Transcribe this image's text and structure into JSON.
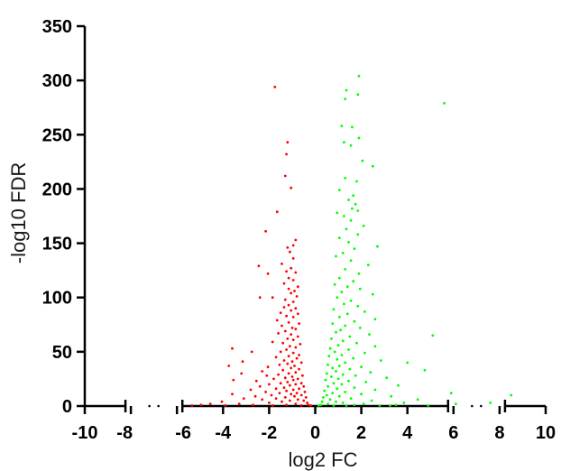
{
  "chart_data": {
    "type": "scatter",
    "title": "",
    "xlabel": "log2 FC",
    "ylabel": "-log10 FDR",
    "xlim": [
      -10,
      10
    ],
    "ylim": [
      0,
      350
    ],
    "x_axis_breaks": [
      [
        -8,
        -6
      ],
      [
        6,
        8
      ]
    ],
    "xticks": [
      "-10",
      "-8",
      "-6",
      "-4",
      "-2",
      "0",
      "2",
      "4",
      "6",
      "8",
      "10"
    ],
    "yticks": [
      "0",
      "50",
      "100",
      "150",
      "200",
      "250",
      "300",
      "350"
    ],
    "grid": false,
    "legend": "none",
    "series": [
      {
        "color": "#ff0000",
        "points": [
          [
            -1.75,
            294
          ],
          [
            -1.2,
            243
          ],
          [
            -1.25,
            232
          ],
          [
            -1.3,
            212
          ],
          [
            -1.05,
            201
          ],
          [
            -1.65,
            179
          ],
          [
            -2.15,
            161
          ],
          [
            -0.85,
            153
          ],
          [
            -0.95,
            148
          ],
          [
            -1.2,
            146
          ],
          [
            -1.1,
            142
          ],
          [
            -0.95,
            136
          ],
          [
            -1.45,
            131
          ],
          [
            -2.45,
            129
          ],
          [
            -1.05,
            127
          ],
          [
            -1.25,
            124
          ],
          [
            -0.85,
            123
          ],
          [
            -2.05,
            122
          ],
          [
            -1.15,
            118
          ],
          [
            -0.95,
            116
          ],
          [
            -1.35,
            113
          ],
          [
            -0.75,
            110
          ],
          [
            -1.15,
            108
          ],
          [
            -0.9,
            106
          ],
          [
            -1.05,
            104
          ],
          [
            -2.4,
            100
          ],
          [
            -1.85,
            100
          ],
          [
            -0.8,
            101
          ],
          [
            -1.3,
            98
          ],
          [
            -0.95,
            96
          ],
          [
            -1.15,
            93
          ],
          [
            -1.35,
            91
          ],
          [
            -0.85,
            90
          ],
          [
            -1.05,
            88
          ],
          [
            -1.5,
            86
          ],
          [
            -0.75,
            85
          ],
          [
            -1.25,
            83
          ],
          [
            -0.95,
            82
          ],
          [
            -1.65,
            79
          ],
          [
            -1.15,
            77
          ],
          [
            -0.7,
            76
          ],
          [
            -1.45,
            74
          ],
          [
            -1.0,
            72
          ],
          [
            -0.85,
            71
          ],
          [
            -1.3,
            69
          ],
          [
            -1.6,
            67
          ],
          [
            -1.05,
            66
          ],
          [
            -0.75,
            64
          ],
          [
            -1.2,
            62
          ],
          [
            -0.95,
            61
          ],
          [
            -1.85,
            59
          ],
          [
            -1.4,
            58
          ],
          [
            -0.65,
            57
          ],
          [
            -1.1,
            55
          ],
          [
            -0.85,
            54
          ],
          [
            -3.6,
            53
          ],
          [
            -1.25,
            52
          ],
          [
            -1.5,
            50
          ],
          [
            -0.95,
            49
          ],
          [
            -2.75,
            50
          ],
          [
            -0.7,
            47
          ],
          [
            -1.15,
            46
          ],
          [
            -1.7,
            45
          ],
          [
            -0.8,
            44
          ],
          [
            -1.35,
            42
          ],
          [
            -1.0,
            41
          ],
          [
            -3.15,
            41
          ],
          [
            -0.6,
            40
          ],
          [
            -1.2,
            39
          ],
          [
            -1.55,
            38
          ],
          [
            -3.75,
            37
          ],
          [
            -0.9,
            37
          ],
          [
            -2.05,
            36
          ],
          [
            -1.05,
            35
          ],
          [
            -0.7,
            34
          ],
          [
            -1.4,
            33
          ],
          [
            -2.3,
            32
          ],
          [
            -0.85,
            31
          ],
          [
            -1.15,
            30
          ],
          [
            -3.2,
            30
          ],
          [
            -1.6,
            29
          ],
          [
            -0.55,
            28
          ],
          [
            -2.1,
            28
          ],
          [
            -1.0,
            27
          ],
          [
            -1.3,
            26
          ],
          [
            -0.75,
            25
          ],
          [
            -1.8,
            25
          ],
          [
            -3.55,
            24
          ],
          [
            -0.95,
            24
          ],
          [
            -2.55,
            23
          ],
          [
            -1.2,
            22
          ],
          [
            -0.6,
            21
          ],
          [
            -1.5,
            21
          ],
          [
            -2.0,
            20
          ],
          [
            -0.85,
            20
          ],
          [
            -1.1,
            19
          ],
          [
            -2.4,
            18
          ],
          [
            -0.5,
            18
          ],
          [
            -1.35,
            17
          ],
          [
            -0.7,
            16
          ],
          [
            -1.7,
            16
          ],
          [
            -2.8,
            15
          ],
          [
            -0.95,
            15
          ],
          [
            -1.25,
            14
          ],
          [
            -0.45,
            13
          ],
          [
            -2.15,
            13
          ],
          [
            -0.8,
            12
          ],
          [
            -1.55,
            12
          ],
          [
            -3.6,
            11
          ],
          [
            -1.05,
            11
          ],
          [
            -0.6,
            10
          ],
          [
            -1.9,
            10
          ],
          [
            -2.6,
            9
          ],
          [
            -0.9,
            9
          ],
          [
            -1.3,
            8
          ],
          [
            -0.4,
            8
          ],
          [
            -3.1,
            7
          ],
          [
            -1.7,
            7
          ],
          [
            -0.75,
            6
          ],
          [
            -2.3,
            6
          ],
          [
            -1.1,
            5
          ],
          [
            -0.5,
            5
          ],
          [
            -4.05,
            4
          ],
          [
            -1.45,
            4
          ],
          [
            -0.35,
            3
          ],
          [
            -4.55,
            2
          ],
          [
            -2.0,
            3
          ],
          [
            -0.85,
            2
          ],
          [
            -4.95,
            1
          ],
          [
            -3.3,
            2
          ],
          [
            -1.25,
            1
          ],
          [
            -0.3,
            1
          ],
          [
            -5.35,
            0.5
          ],
          [
            -2.7,
            1
          ],
          [
            -0.6,
            0.5
          ],
          [
            -1.85,
            0.5
          ],
          [
            -3.9,
            0.5
          ],
          [
            -0.2,
            0.5
          ]
        ]
      },
      {
        "color": "#00ff00",
        "points": [
          [
            1.9,
            304
          ],
          [
            1.35,
            291
          ],
          [
            1.85,
            287
          ],
          [
            1.3,
            283
          ],
          [
            5.6,
            279
          ],
          [
            1.15,
            258
          ],
          [
            1.6,
            257
          ],
          [
            1.9,
            247
          ],
          [
            1.25,
            243
          ],
          [
            1.55,
            240
          ],
          [
            2.05,
            226
          ],
          [
            2.5,
            221
          ],
          [
            1.3,
            210
          ],
          [
            1.8,
            207
          ],
          [
            1.05,
            199
          ],
          [
            1.65,
            194
          ],
          [
            1.45,
            190
          ],
          [
            1.75,
            186
          ],
          [
            1.6,
            182
          ],
          [
            1.85,
            180
          ],
          [
            0.95,
            178
          ],
          [
            1.25,
            175
          ],
          [
            1.55,
            171
          ],
          [
            2.1,
            166
          ],
          [
            1.35,
            163
          ],
          [
            1.85,
            158
          ],
          [
            1.05,
            155
          ],
          [
            1.45,
            151
          ],
          [
            2.7,
            147
          ],
          [
            1.7,
            145
          ],
          [
            1.2,
            141
          ],
          [
            0.9,
            138
          ],
          [
            1.55,
            134
          ],
          [
            2.3,
            130
          ],
          [
            1.3,
            126
          ],
          [
            1.9,
            122
          ],
          [
            1.05,
            118
          ],
          [
            1.65,
            115
          ],
          [
            0.85,
            112
          ],
          [
            1.4,
            110
          ],
          [
            1.95,
            108
          ],
          [
            1.15,
            105
          ],
          [
            2.5,
            103
          ],
          [
            0.95,
            100
          ],
          [
            1.55,
            97
          ],
          [
            1.25,
            94
          ],
          [
            1.85,
            92
          ],
          [
            0.8,
            89
          ],
          [
            2.15,
            87
          ],
          [
            1.4,
            85
          ],
          [
            1.05,
            82
          ],
          [
            2.6,
            80
          ],
          [
            1.7,
            78
          ],
          [
            0.75,
            76
          ],
          [
            1.3,
            74
          ],
          [
            1.95,
            72
          ],
          [
            1.1,
            70
          ],
          [
            0.9,
            68
          ],
          [
            2.35,
            66
          ],
          [
            5.1,
            65
          ],
          [
            1.5,
            64
          ],
          [
            0.7,
            62
          ],
          [
            1.2,
            60
          ],
          [
            1.8,
            58
          ],
          [
            1.0,
            56
          ],
          [
            2.6,
            55
          ],
          [
            0.65,
            53
          ],
          [
            1.45,
            52
          ],
          [
            0.85,
            50
          ],
          [
            2.15,
            49
          ],
          [
            1.15,
            47
          ],
          [
            0.6,
            46
          ],
          [
            1.65,
            44
          ],
          [
            0.95,
            43
          ],
          [
            2.85,
            42
          ],
          [
            4.0,
            40
          ],
          [
            1.3,
            40
          ],
          [
            0.55,
            38
          ],
          [
            1.05,
            37
          ],
          [
            2.0,
            36
          ],
          [
            0.75,
            35
          ],
          [
            1.5,
            34
          ],
          [
            4.75,
            33
          ],
          [
            0.9,
            32
          ],
          [
            2.4,
            31
          ],
          [
            0.5,
            30
          ],
          [
            1.2,
            29
          ],
          [
            1.75,
            28
          ],
          [
            0.7,
            27
          ],
          [
            3.1,
            26
          ],
          [
            1.0,
            25
          ],
          [
            0.45,
            24
          ],
          [
            1.45,
            23
          ],
          [
            2.2,
            22
          ],
          [
            0.8,
            21
          ],
          [
            1.15,
            20
          ],
          [
            3.6,
            19
          ],
          [
            0.55,
            18
          ],
          [
            1.7,
            17
          ],
          [
            0.95,
            16
          ],
          [
            2.6,
            15
          ],
          [
            0.4,
            14
          ],
          [
            1.3,
            13
          ],
          [
            5.9,
            12
          ],
          [
            0.75,
            12
          ],
          [
            2.0,
            11
          ],
          [
            0.5,
            10
          ],
          [
            3.3,
            9
          ],
          [
            1.05,
            9
          ],
          [
            0.35,
            8
          ],
          [
            1.55,
            7
          ],
          [
            4.45,
            6
          ],
          [
            0.65,
            6
          ],
          [
            2.45,
            5
          ],
          [
            0.9,
            4
          ],
          [
            0.3,
            4
          ],
          [
            3.85,
            3
          ],
          [
            1.2,
            3
          ],
          [
            7.6,
            3
          ],
          [
            2.1,
            2
          ],
          [
            0.55,
            2
          ],
          [
            6.1,
            2
          ],
          [
            8.5,
            10
          ],
          [
            3.5,
            1
          ],
          [
            0.25,
            1
          ],
          [
            1.7,
            1
          ],
          [
            4.9,
            0.5
          ],
          [
            2.8,
            0.5
          ],
          [
            0.8,
            0.5
          ],
          [
            0.15,
            0.5
          ],
          [
            1.35,
            0.5
          ],
          [
            3.25,
            0.5
          ]
        ]
      }
    ]
  }
}
